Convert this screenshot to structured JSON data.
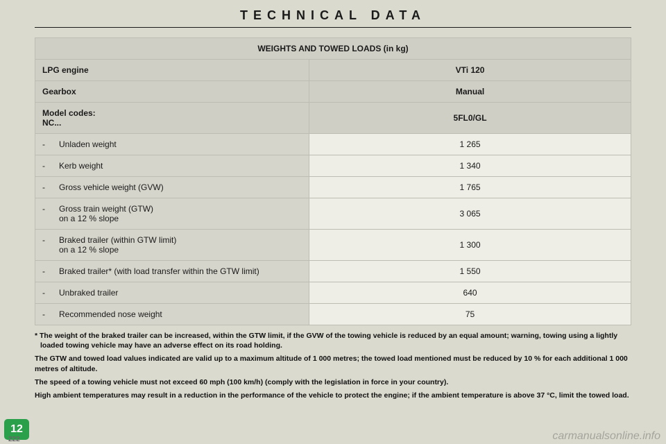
{
  "title": "TECHNICAL DATA",
  "table": {
    "header": "WEIGHTS AND TOWED LOADS (in kg)",
    "rows": [
      {
        "label": "LPG engine",
        "value": "VTi 120",
        "kind": "hdr"
      },
      {
        "label": "Gearbox",
        "value": "Manual",
        "kind": "hdr"
      },
      {
        "label": "Model codes:\nNC...",
        "value": "5FL0/GL",
        "kind": "hdr"
      },
      {
        "label": "Unladen weight",
        "value": "1 265",
        "kind": "item"
      },
      {
        "label": "Kerb weight",
        "value": "1 340",
        "kind": "item"
      },
      {
        "label": "Gross vehicle weight (GVW)",
        "value": "1 765",
        "kind": "item"
      },
      {
        "label": "Gross train weight (GTW)\non a 12 % slope",
        "value": "3 065",
        "kind": "item"
      },
      {
        "label": "Braked trailer (within GTW limit)\non a 12 % slope",
        "value": "1 300",
        "kind": "item"
      },
      {
        "label": "Braked trailer* (with load transfer within the GTW limit)",
        "value": "1 550",
        "kind": "item"
      },
      {
        "label": "Unbraked trailer",
        "value": "640",
        "kind": "item"
      },
      {
        "label": "Recommended nose weight",
        "value": "75",
        "kind": "item"
      }
    ]
  },
  "footnotes": [
    "* The weight of the braked trailer can be increased, within the GTW limit, if the GVW of the towing vehicle is reduced by an equal amount; warning, towing using a lightly loaded towing vehicle may have an adverse effect on its road holding.",
    "The GTW and towed load values indicated are valid up to a maximum altitude of 1 000 metres; the towed load mentioned must be reduced by 10 % for each additional 1 000 metres of altitude.",
    "The speed of a towing vehicle must not exceed 60 mph (100 km/h) (comply with the legislation in force in your country).",
    "High ambient temperatures may result in a reduction in the performance of the vehicle to protect the engine; if the ambient temperature is above 37 °C, limit the towed load."
  ],
  "badge": "12",
  "pagenum": "222",
  "watermark": "carmanualsonline.info"
}
